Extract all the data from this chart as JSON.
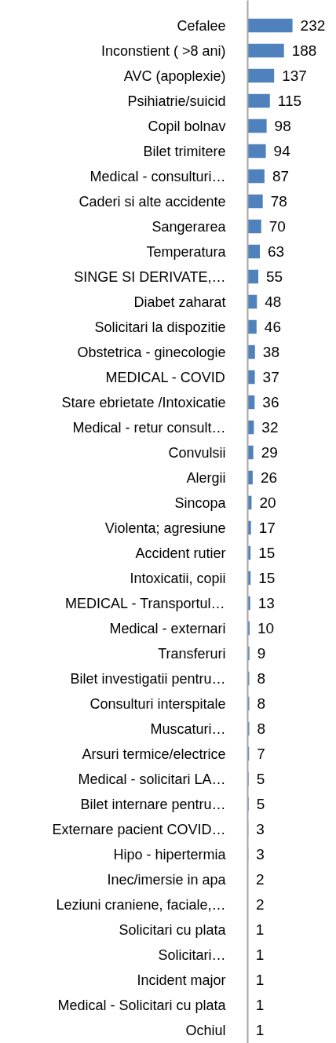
{
  "chart_data": {
    "type": "bar",
    "orientation": "horizontal",
    "color": "#4f81bd",
    "data_labels": true,
    "categories": [
      "Cefalee",
      "Inconstient ( >8 ani)",
      "AVC (apoplexie)",
      "Psihiatrie/suicid",
      "Copil bolnav",
      "Bilet trimitere",
      "Medical - consulturi…",
      "Caderi si alte accidente",
      "Sangerarea",
      "Temperatura",
      "SINGE SI DERIVATE,…",
      "Diabet zaharat",
      "Solicitari la dispozitie",
      "Obstetrica - ginecologie",
      "MEDICAL - COVID",
      "Stare ebrietate /Intoxicatie",
      "Medical - retur consult…",
      "Convulsii",
      "Alergii",
      "Sincopa",
      "Violenta; agresiune",
      "Accident rutier",
      "Intoxicatii, copii",
      "MEDICAL - Transportul…",
      "Medical - externari",
      "Transferuri",
      "Bilet investigatii pentru…",
      "Consulturi interspitale",
      "Muscaturi…",
      "Arsuri termice/electrice",
      "Medical - solicitari LA…",
      "Bilet internare pentru…",
      "Externare pacient COVID…",
      "Hipo - hipertermia",
      "Inec/imersie in apa",
      "Leziuni craniene, faciale,…",
      "Solicitari cu plata",
      "Solicitari…",
      "Incident major",
      "Medical - Solicitari cu plata",
      "Ochiul"
    ],
    "values": [
      232,
      188,
      137,
      115,
      98,
      94,
      87,
      78,
      70,
      63,
      55,
      48,
      46,
      38,
      37,
      36,
      32,
      29,
      26,
      20,
      17,
      15,
      15,
      13,
      10,
      9,
      8,
      8,
      8,
      7,
      5,
      5,
      3,
      3,
      2,
      2,
      1,
      1,
      1,
      1,
      1
    ]
  }
}
